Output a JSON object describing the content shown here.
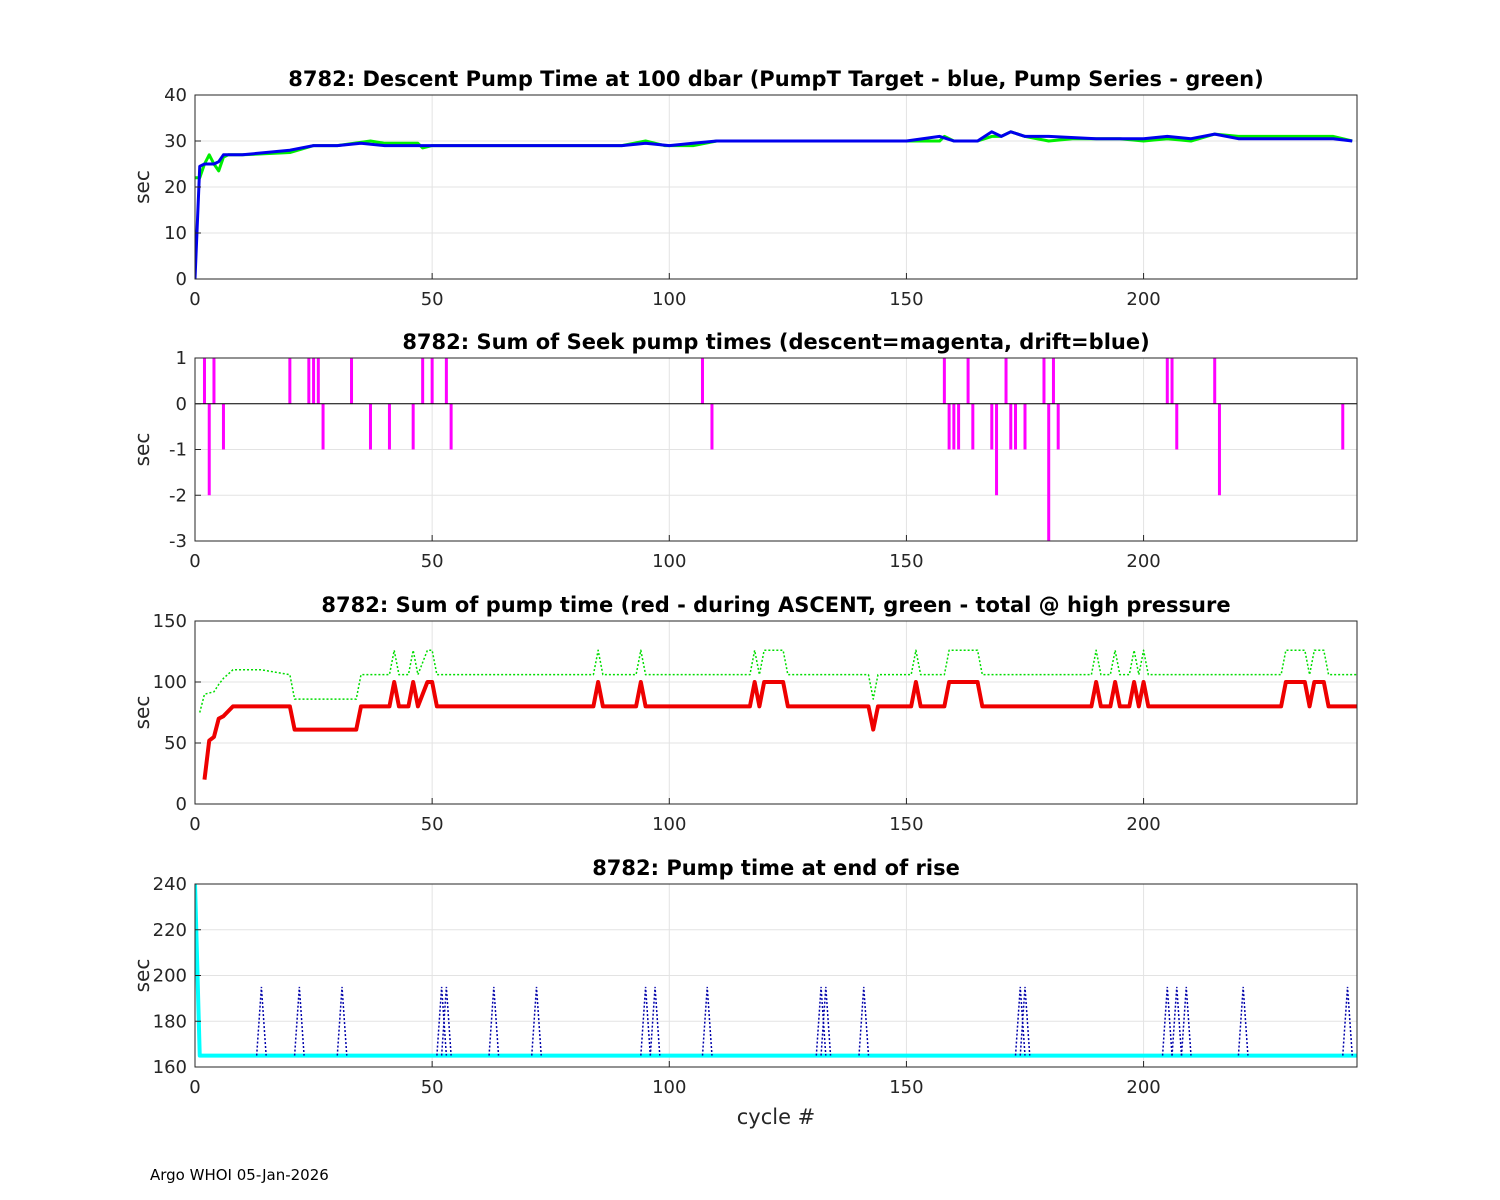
{
  "footer": "Argo WHOI 05-Jan-2026",
  "chart_data": [
    {
      "type": "line",
      "title": "8782: Descent Pump Time at 100 dbar (PumpT Target - blue, Pump Series - green)",
      "xlabel": "",
      "ylabel": "sec",
      "xlim": [
        0,
        245
      ],
      "ylim": [
        0,
        40
      ],
      "xticks": [
        0,
        50,
        100,
        150,
        200
      ],
      "yticks": [
        0,
        10,
        20,
        30,
        40
      ],
      "grid": true,
      "series": [
        {
          "color": "#00ee00",
          "style": "solid",
          "x": [
            0,
            1,
            2,
            3,
            4,
            5,
            6,
            7,
            10,
            20,
            25,
            30,
            37,
            40,
            47,
            48,
            50,
            60,
            70,
            80,
            90,
            95,
            99,
            100,
            105,
            110,
            120,
            150,
            157,
            158,
            160,
            165,
            168,
            170,
            172,
            175,
            180,
            185,
            190,
            195,
            200,
            205,
            210,
            215,
            220,
            230,
            240,
            244
          ],
          "y": [
            22,
            22,
            25,
            27,
            25,
            23.5,
            26.5,
            27,
            27,
            27.5,
            29,
            29,
            30,
            29.5,
            29.5,
            28.5,
            29,
            29,
            29,
            29,
            29,
            30,
            29,
            29,
            29,
            30,
            30,
            30,
            30,
            31,
            30,
            30,
            31,
            31,
            32,
            31,
            30,
            30.5,
            30.5,
            30.5,
            30,
            30.5,
            30,
            31.5,
            31,
            31,
            31,
            30
          ]
        },
        {
          "color": "#0000ee",
          "style": "solid",
          "x": [
            0,
            1,
            2,
            3,
            4,
            5,
            6,
            10,
            20,
            25,
            30,
            35,
            40,
            50,
            60,
            70,
            80,
            90,
            95,
            100,
            105,
            110,
            120,
            150,
            157,
            160,
            165,
            168,
            170,
            172,
            175,
            180,
            190,
            200,
            205,
            210,
            215,
            220,
            230,
            240,
            244
          ],
          "y": [
            0,
            24.5,
            25,
            25,
            25,
            25.5,
            27,
            27,
            28,
            29,
            29,
            29.5,
            29,
            29,
            29,
            29,
            29,
            29,
            29.5,
            29,
            29.5,
            30,
            30,
            30,
            31,
            30,
            30,
            32,
            31,
            32,
            31,
            31,
            30.5,
            30.5,
            31,
            30.5,
            31.5,
            30.5,
            30.5,
            30.5,
            30
          ]
        }
      ]
    },
    {
      "type": "bar",
      "title": "8782: Sum of Seek pump times (descent=magenta, drift=blue)",
      "xlabel": "",
      "ylabel": "sec",
      "xlim": [
        0,
        245
      ],
      "ylim": [
        -3,
        1
      ],
      "xticks": [
        0,
        50,
        100,
        150,
        200
      ],
      "yticks": [
        -3,
        -2,
        -1,
        0,
        1
      ],
      "grid": true,
      "series": [
        {
          "color": "#ff00ff",
          "x": [
            2,
            3,
            4,
            6,
            20,
            24,
            25,
            26,
            27,
            33,
            37,
            41,
            46,
            48,
            50,
            53,
            54,
            107,
            109,
            158,
            159,
            160,
            161,
            163,
            164,
            168,
            169,
            171,
            172,
            173,
            175,
            179,
            180,
            181,
            182,
            205,
            206,
            207,
            215,
            216,
            242
          ],
          "y": [
            1,
            -2,
            1,
            -1,
            1,
            1,
            1,
            1,
            -1,
            1,
            -1,
            -1,
            -1,
            1,
            1,
            1,
            -1,
            1,
            -1,
            1,
            -1,
            -1,
            -1,
            1,
            -1,
            -1,
            -2,
            1,
            -1,
            -1,
            -1,
            1,
            -3,
            1,
            -1,
            1,
            1,
            -1,
            1,
            -2,
            -1
          ]
        }
      ]
    },
    {
      "type": "line",
      "title": "8782: Sum of pump time (red - during ASCENT, green - total @ high pressure",
      "xlabel": "",
      "ylabel": "sec",
      "xlim": [
        0,
        245
      ],
      "ylim": [
        0,
        150
      ],
      "xticks": [
        0,
        50,
        100,
        150,
        200
      ],
      "yticks": [
        0,
        50,
        100,
        150
      ],
      "grid": true,
      "series": [
        {
          "color": "#00dd00",
          "style": "dotted",
          "x": [
            1,
            2,
            4,
            5,
            6,
            8,
            14,
            20,
            21,
            34,
            35,
            41,
            42,
            43,
            45,
            46,
            47,
            49,
            50,
            51,
            84,
            85,
            86,
            93,
            94,
            95,
            117,
            118,
            119,
            120,
            124,
            125,
            142,
            143,
            144,
            151,
            152,
            153,
            158,
            159,
            165,
            166,
            189,
            190,
            191,
            193,
            194,
            195,
            197,
            198,
            199,
            200,
            201,
            202,
            229,
            230,
            234,
            235,
            236,
            238,
            239,
            245
          ],
          "y": [
            75,
            90,
            92,
            98,
            103,
            110,
            110,
            106,
            86,
            86,
            106,
            106,
            126,
            106,
            106,
            126,
            106,
            126,
            126,
            106,
            106,
            126,
            106,
            106,
            126,
            106,
            106,
            126,
            106,
            126,
            126,
            106,
            106,
            86,
            106,
            106,
            126,
            106,
            106,
            126,
            126,
            106,
            106,
            126,
            106,
            106,
            126,
            106,
            106,
            126,
            106,
            126,
            106,
            106,
            106,
            126,
            126,
            106,
            126,
            126,
            106,
            106
          ]
        },
        {
          "color": "#ee0000",
          "style": "solid",
          "x": [
            2,
            3,
            4,
            5,
            6,
            7,
            8,
            20,
            21,
            34,
            35,
            41,
            42,
            43,
            45,
            46,
            47,
            49,
            50,
            51,
            84,
            85,
            86,
            93,
            94,
            95,
            117,
            118,
            119,
            120,
            124,
            125,
            142,
            143,
            144,
            151,
            152,
            153,
            158,
            159,
            165,
            166,
            189,
            190,
            191,
            193,
            194,
            195,
            197,
            198,
            199,
            200,
            201,
            202,
            229,
            230,
            234,
            235,
            236,
            238,
            239,
            245
          ],
          "y": [
            20,
            52,
            55,
            70,
            72,
            76,
            80,
            80,
            61,
            61,
            80,
            80,
            100,
            80,
            80,
            100,
            80,
            100,
            100,
            80,
            80,
            100,
            80,
            80,
            100,
            80,
            80,
            100,
            80,
            100,
            100,
            80,
            80,
            61,
            80,
            80,
            100,
            80,
            80,
            100,
            100,
            80,
            80,
            100,
            80,
            80,
            100,
            80,
            80,
            100,
            80,
            100,
            80,
            80,
            80,
            100,
            100,
            80,
            100,
            100,
            80,
            80
          ]
        }
      ]
    },
    {
      "type": "line",
      "title": "8782: Pump time at end of rise",
      "xlabel": "cycle #",
      "ylabel": "sec",
      "xlim": [
        0,
        245
      ],
      "ylim": [
        160,
        240
      ],
      "xticks": [
        0,
        50,
        100,
        150,
        200
      ],
      "yticks": [
        160,
        180,
        200,
        220,
        240
      ],
      "grid": true,
      "series": [
        {
          "color": "#00ffff",
          "style": "solid",
          "x": [
            0,
            1,
            2,
            245
          ],
          "y": [
            240,
            165,
            165,
            165
          ]
        },
        {
          "color": "#0000aa",
          "style": "dotted",
          "spikes": [
            14,
            22,
            31,
            52,
            53,
            63,
            72,
            95,
            97,
            108,
            132,
            133,
            141,
            174,
            175,
            205,
            207,
            209,
            221,
            243
          ],
          "base": 165,
          "peak": 195
        }
      ]
    }
  ]
}
